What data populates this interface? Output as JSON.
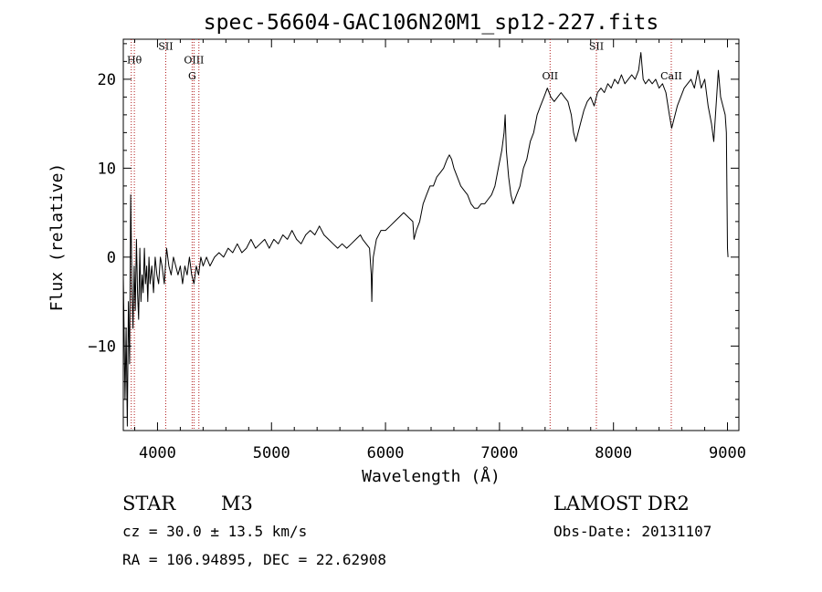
{
  "chart_data": {
    "type": "line",
    "title": "spec-56604-GAC106N20M1_sp12-227.fits",
    "xlabel": "Wavelength (Å)",
    "ylabel": "Flux (relative)",
    "xlim": [
      3700,
      9100
    ],
    "ylim": [
      -19.5,
      24.5
    ],
    "x_ticks": [
      4000,
      5000,
      6000,
      7000,
      8000,
      9000
    ],
    "y_ticks": [
      -10,
      0,
      10,
      20
    ],
    "grid": false,
    "spectral_lines": [
      {
        "label": "Hθ",
        "wavelength": 3797,
        "label_y": 21.8
      },
      {
        "label": "",
        "wavelength": 3770,
        "label_y": null
      },
      {
        "label": "SII",
        "wavelength": 4072,
        "label_y": 23.3
      },
      {
        "label": "OIII",
        "wavelength": 4320,
        "label_y": 21.8
      },
      {
        "label": "G",
        "wavelength": 4304,
        "label_y": 20.0
      },
      {
        "label": "",
        "wavelength": 4363,
        "label_y": null
      },
      {
        "label": "OII",
        "wavelength": 7444,
        "label_y": 20.0
      },
      {
        "label": "SII",
        "wavelength": 7850,
        "label_y": 23.3
      },
      {
        "label": "CaII",
        "wavelength": 8507,
        "label_y": 20.0
      }
    ],
    "series": [
      {
        "points": [
          [
            3700,
            -2
          ],
          [
            3715,
            -16
          ],
          [
            3725,
            -8
          ],
          [
            3735,
            -19
          ],
          [
            3745,
            -5
          ],
          [
            3755,
            -12
          ],
          [
            3765,
            7
          ],
          [
            3775,
            -3
          ],
          [
            3785,
            -8
          ],
          [
            3795,
            -1
          ],
          [
            3805,
            -6
          ],
          [
            3815,
            2
          ],
          [
            3825,
            -4
          ],
          [
            3835,
            -7
          ],
          [
            3845,
            1
          ],
          [
            3855,
            -5
          ],
          [
            3865,
            -2
          ],
          [
            3875,
            -4
          ],
          [
            3885,
            1
          ],
          [
            3895,
            -3
          ],
          [
            3905,
            -1
          ],
          [
            3915,
            -5
          ],
          [
            3925,
            0
          ],
          [
            3935,
            -3
          ],
          [
            3950,
            -1
          ],
          [
            3965,
            -4
          ],
          [
            3980,
            0
          ],
          [
            3995,
            -2
          ],
          [
            4010,
            -3
          ],
          [
            4025,
            0
          ],
          [
            4040,
            -1
          ],
          [
            4060,
            -3
          ],
          [
            4080,
            1
          ],
          [
            4100,
            -1
          ],
          [
            4120,
            -2
          ],
          [
            4140,
            0
          ],
          [
            4160,
            -1
          ],
          [
            4180,
            -2
          ],
          [
            4200,
            -1
          ],
          [
            4220,
            -3
          ],
          [
            4240,
            -1
          ],
          [
            4260,
            -2
          ],
          [
            4280,
            0
          ],
          [
            4300,
            -2
          ],
          [
            4320,
            -3
          ],
          [
            4340,
            -1
          ],
          [
            4360,
            -2
          ],
          [
            4380,
            0
          ],
          [
            4400,
            -1
          ],
          [
            4430,
            0
          ],
          [
            4460,
            -1
          ],
          [
            4500,
            0
          ],
          [
            4540,
            0.5
          ],
          [
            4580,
            0
          ],
          [
            4620,
            1
          ],
          [
            4660,
            0.5
          ],
          [
            4700,
            1.5
          ],
          [
            4740,
            0.5
          ],
          [
            4780,
            1
          ],
          [
            4820,
            2
          ],
          [
            4860,
            1
          ],
          [
            4900,
            1.5
          ],
          [
            4940,
            2
          ],
          [
            4980,
            1
          ],
          [
            5020,
            2
          ],
          [
            5060,
            1.5
          ],
          [
            5100,
            2.5
          ],
          [
            5140,
            2
          ],
          [
            5180,
            3
          ],
          [
            5220,
            2
          ],
          [
            5260,
            1.5
          ],
          [
            5300,
            2.5
          ],
          [
            5340,
            3
          ],
          [
            5380,
            2.5
          ],
          [
            5420,
            3.5
          ],
          [
            5460,
            2.5
          ],
          [
            5500,
            2
          ],
          [
            5540,
            1.5
          ],
          [
            5580,
            1
          ],
          [
            5620,
            1.5
          ],
          [
            5660,
            1
          ],
          [
            5700,
            1.5
          ],
          [
            5740,
            2
          ],
          [
            5780,
            2.5
          ],
          [
            5800,
            2
          ],
          [
            5830,
            1.5
          ],
          [
            5860,
            1
          ],
          [
            5875,
            -2
          ],
          [
            5880,
            -5
          ],
          [
            5885,
            -2
          ],
          [
            5893,
            0
          ],
          [
            5920,
            2
          ],
          [
            5960,
            3
          ],
          [
            6000,
            3
          ],
          [
            6040,
            3.5
          ],
          [
            6080,
            4
          ],
          [
            6120,
            4.5
          ],
          [
            6160,
            5
          ],
          [
            6200,
            4.5
          ],
          [
            6240,
            4
          ],
          [
            6250,
            2
          ],
          [
            6270,
            3
          ],
          [
            6300,
            4
          ],
          [
            6330,
            6
          ],
          [
            6360,
            7
          ],
          [
            6390,
            8
          ],
          [
            6420,
            8
          ],
          [
            6450,
            9
          ],
          [
            6480,
            9.5
          ],
          [
            6510,
            10
          ],
          [
            6540,
            11
          ],
          [
            6560,
            11.5
          ],
          [
            6580,
            11
          ],
          [
            6600,
            10
          ],
          [
            6630,
            9
          ],
          [
            6660,
            8
          ],
          [
            6690,
            7.5
          ],
          [
            6720,
            7
          ],
          [
            6750,
            6
          ],
          [
            6780,
            5.5
          ],
          [
            6810,
            5.5
          ],
          [
            6840,
            6
          ],
          [
            6870,
            6
          ],
          [
            6900,
            6.5
          ],
          [
            6930,
            7
          ],
          [
            6960,
            8
          ],
          [
            6990,
            10
          ],
          [
            7020,
            12
          ],
          [
            7040,
            14
          ],
          [
            7050,
            16
          ],
          [
            7060,
            12
          ],
          [
            7080,
            9
          ],
          [
            7100,
            7
          ],
          [
            7120,
            6
          ],
          [
            7150,
            7
          ],
          [
            7180,
            8
          ],
          [
            7210,
            10
          ],
          [
            7240,
            11
          ],
          [
            7270,
            13
          ],
          [
            7300,
            14
          ],
          [
            7330,
            16
          ],
          [
            7360,
            17
          ],
          [
            7390,
            18
          ],
          [
            7420,
            19
          ],
          [
            7450,
            18
          ],
          [
            7480,
            17.5
          ],
          [
            7510,
            18
          ],
          [
            7540,
            18.5
          ],
          [
            7570,
            18
          ],
          [
            7600,
            17.5
          ],
          [
            7630,
            16
          ],
          [
            7650,
            14
          ],
          [
            7670,
            13
          ],
          [
            7690,
            14
          ],
          [
            7710,
            15
          ],
          [
            7740,
            16.5
          ],
          [
            7770,
            17.5
          ],
          [
            7800,
            18
          ],
          [
            7830,
            17
          ],
          [
            7860,
            18.5
          ],
          [
            7890,
            19
          ],
          [
            7920,
            18.5
          ],
          [
            7950,
            19.5
          ],
          [
            7980,
            19
          ],
          [
            8010,
            20
          ],
          [
            8040,
            19.5
          ],
          [
            8070,
            20.5
          ],
          [
            8100,
            19.5
          ],
          [
            8130,
            20
          ],
          [
            8160,
            20.5
          ],
          [
            8190,
            20
          ],
          [
            8220,
            21
          ],
          [
            8240,
            23
          ],
          [
            8260,
            20
          ],
          [
            8280,
            19.5
          ],
          [
            8310,
            20
          ],
          [
            8340,
            19.5
          ],
          [
            8370,
            20
          ],
          [
            8400,
            19
          ],
          [
            8430,
            19.5
          ],
          [
            8460,
            18.5
          ],
          [
            8490,
            16
          ],
          [
            8510,
            14.5
          ],
          [
            8530,
            15.5
          ],
          [
            8560,
            17
          ],
          [
            8590,
            18
          ],
          [
            8620,
            19
          ],
          [
            8650,
            19.5
          ],
          [
            8680,
            20
          ],
          [
            8710,
            19
          ],
          [
            8740,
            21
          ],
          [
            8770,
            19
          ],
          [
            8800,
            20
          ],
          [
            8830,
            17
          ],
          [
            8860,
            15
          ],
          [
            8880,
            13
          ],
          [
            8900,
            17
          ],
          [
            8920,
            21
          ],
          [
            8940,
            18
          ],
          [
            8960,
            17
          ],
          [
            8980,
            16
          ],
          [
            8990,
            14
          ],
          [
            9000,
            1
          ],
          [
            9005,
            0
          ]
        ]
      }
    ]
  },
  "info": {
    "object_class": "STAR",
    "subclass": "M3",
    "survey": "LAMOST DR2",
    "cz": "cz = 30.0 ± 13.5 km/s",
    "obs_date": "Obs-Date: 20131107",
    "coords": "RA = 106.94895, DEC =  22.62908"
  },
  "colors": {
    "foreground": "#000000",
    "spectral_line": "#b01818"
  }
}
